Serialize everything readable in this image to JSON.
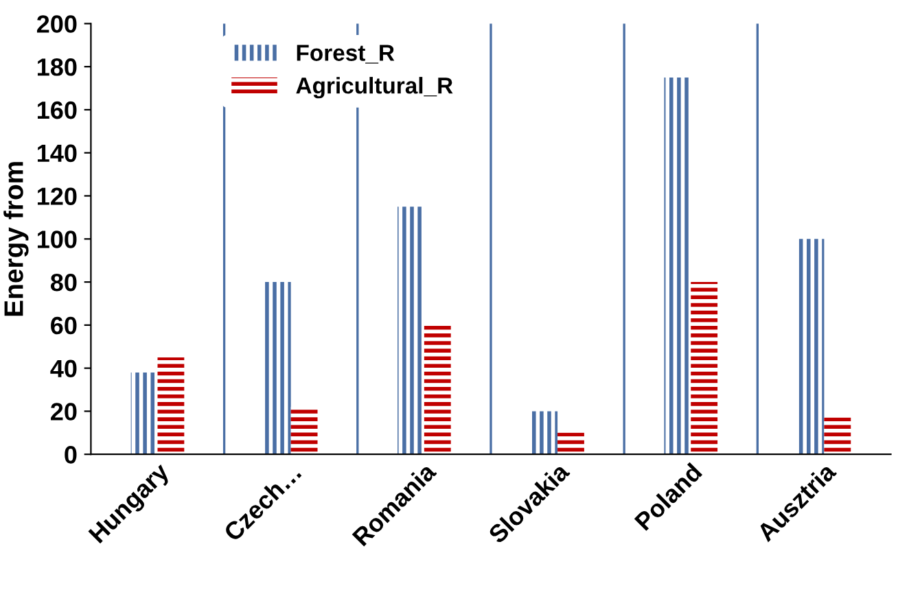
{
  "chart_data": {
    "type": "bar",
    "ylabel": "Energy from",
    "categories": [
      "Hungary",
      "Czech…",
      "Romania",
      "Slovakia",
      "Poland",
      "Ausztria"
    ],
    "series": [
      {
        "name": "Forest_R",
        "color": "#4a6fa5",
        "values": [
          38,
          80,
          115,
          20,
          175,
          100
        ]
      },
      {
        "name": "Agricultural_R",
        "color": "#c00000",
        "values": [
          45,
          22,
          60,
          10,
          80,
          17
        ]
      }
    ],
    "ylim": [
      0,
      200
    ],
    "yticks": [
      0,
      20,
      40,
      60,
      80,
      100,
      120,
      140,
      160,
      180,
      200
    ],
    "grid": "x",
    "legend": "top left"
  }
}
